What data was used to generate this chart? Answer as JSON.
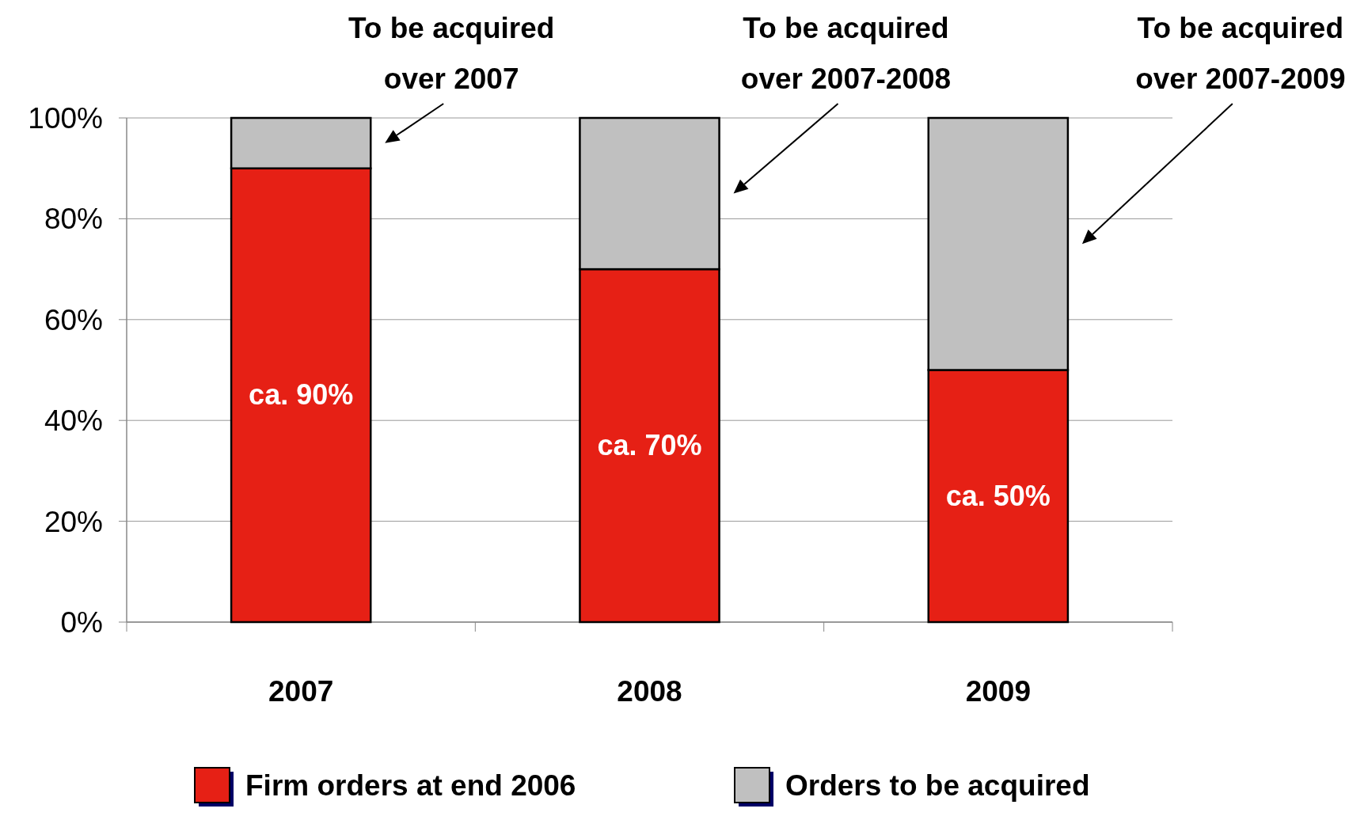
{
  "chart_data": {
    "type": "bar",
    "stacked": true,
    "categories": [
      "2007",
      "2008",
      "2009"
    ],
    "series": [
      {
        "name": "Firm orders at end 2006",
        "color": "#e62015",
        "values": [
          90,
          70,
          50
        ],
        "value_labels": [
          "ca. 90%",
          "ca. 70%",
          "ca. 50%"
        ]
      },
      {
        "name": "Orders to be acquired",
        "color": "#c0c0c0",
        "values": [
          10,
          30,
          50
        ]
      }
    ],
    "ylim": [
      0,
      100
    ],
    "yticks": [
      {
        "value": 0,
        "label": "0%"
      },
      {
        "value": 20,
        "label": "20%"
      },
      {
        "value": 40,
        "label": "40%"
      },
      {
        "value": 60,
        "label": "60%"
      },
      {
        "value": 80,
        "label": "80%"
      },
      {
        "value": 100,
        "label": "100%"
      }
    ],
    "grid": "y",
    "legend": "bottom",
    "annotations": [
      "To be acquired\nover 2007",
      "To be acquired\nover 2007-2008",
      "To be acquired\nover 2007-2009"
    ]
  }
}
